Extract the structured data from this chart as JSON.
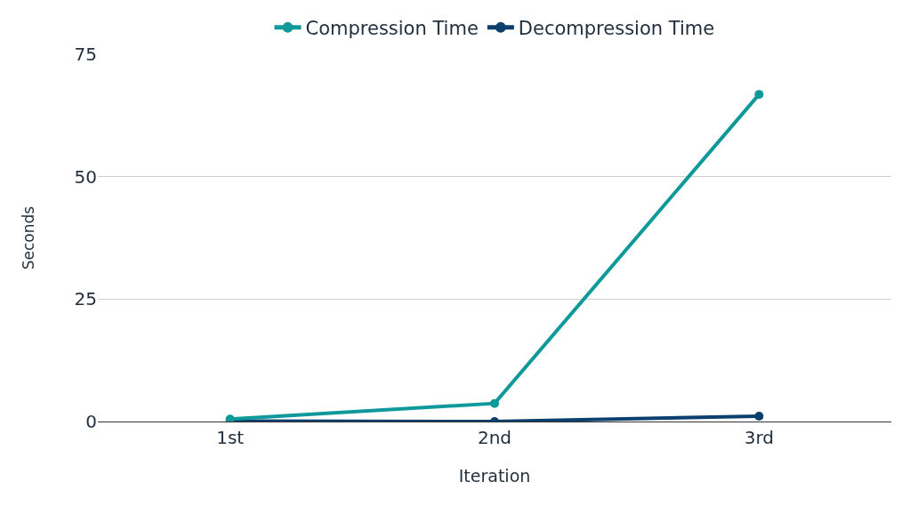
{
  "chart_data": {
    "type": "line",
    "xlabel": "Iteration",
    "ylabel": "Seconds",
    "categories": [
      "1st",
      "2nd",
      "3rd"
    ],
    "series": [
      {
        "name": "Compression Time",
        "color": "#10999b",
        "values": [
          0.5,
          3.7,
          66.8
        ]
      },
      {
        "name": "Decompression Time",
        "color": "#0b3f6e",
        "values": [
          0.1,
          0,
          1.1
        ]
      }
    ],
    "ylim": [
      0,
      75
    ],
    "yticks": [
      0,
      25,
      50,
      75
    ],
    "grid": "y",
    "legend": "top",
    "marker": "circle",
    "line_style": "solid"
  }
}
